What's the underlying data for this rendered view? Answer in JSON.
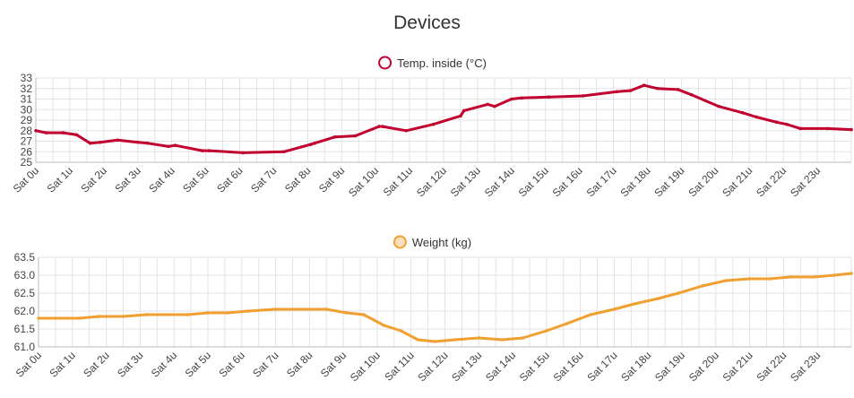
{
  "page": {
    "title": "Devices"
  },
  "chart_data": [
    {
      "type": "line",
      "legend": {
        "label": "Temp. inside (°C)",
        "placement": "top-center"
      },
      "color": "#c2002f",
      "fill": "#ffffff",
      "grid": true,
      "ylim": [
        25,
        33
      ],
      "yticks": [
        25,
        26,
        27,
        28,
        29,
        30,
        31,
        32,
        33
      ],
      "xlim": [
        0,
        24
      ],
      "categories": [
        "Sat 0u",
        "Sat 1u",
        "Sat 2u",
        "Sat 3u",
        "Sat 4u",
        "Sat 5u",
        "Sat 6u",
        "Sat 7u",
        "Sat 8u",
        "Sat 9u",
        "Sat 10u",
        "Sat 11u",
        "Sat 12u",
        "Sat 13u",
        "Sat 14u",
        "Sat 15u",
        "Sat 16u",
        "Sat 17u",
        "Sat 18u",
        "Sat 19u",
        "Sat 20u",
        "Sat 21u",
        "Sat 22u",
        "Sat 23u"
      ],
      "x": [
        0,
        0.3,
        0.8,
        1.2,
        1.6,
        1.9,
        2.4,
        3.0,
        3.3,
        3.9,
        4.1,
        4.9,
        5.1,
        6.1,
        7.3,
        8.1,
        8.2,
        8.8,
        9.4,
        10.1,
        10.2,
        10.9,
        11.7,
        12.5,
        12.6,
        13.3,
        13.5,
        14.0,
        14.3,
        15.1,
        16.1,
        17.1,
        17.5,
        17.9,
        18.3,
        18.9,
        19.3,
        20.1,
        20.8,
        21.2,
        21.8,
        22.1,
        22.5,
        23.3,
        24.0
      ],
      "y": [
        28.0,
        27.8,
        27.8,
        27.6,
        26.8,
        26.9,
        27.1,
        26.9,
        26.8,
        26.5,
        26.6,
        26.1,
        26.1,
        25.9,
        26.0,
        26.7,
        26.8,
        27.4,
        27.5,
        28.4,
        28.4,
        28.0,
        28.6,
        29.4,
        29.9,
        30.5,
        30.3,
        31.0,
        31.1,
        31.2,
        31.3,
        31.7,
        31.8,
        32.3,
        32.0,
        31.9,
        31.4,
        30.3,
        29.7,
        29.3,
        28.8,
        28.6,
        28.2,
        28.2,
        28.1
      ]
    },
    {
      "type": "line",
      "legend": {
        "label": "Weight (kg)",
        "placement": "top-center"
      },
      "color": "#f0a030",
      "fill": "#fbe0c0",
      "grid": true,
      "ylim": [
        61.0,
        63.5
      ],
      "yticks": [
        61.0,
        61.5,
        62.0,
        62.5,
        63.0,
        63.5
      ],
      "xlim": [
        0,
        24
      ],
      "categories": [
        "Sat 0u",
        "Sat 1u",
        "Sat 2u",
        "Sat 3u",
        "Sat 4u",
        "Sat 5u",
        "Sat 6u",
        "Sat 7u",
        "Sat 8u",
        "Sat 9u",
        "Sat 10u",
        "Sat 11u",
        "Sat 12u",
        "Sat 13u",
        "Sat 14u",
        "Sat 15u",
        "Sat 16u",
        "Sat 17u",
        "Sat 18u",
        "Sat 19u",
        "Sat 20u",
        "Sat 21u",
        "Sat 22u",
        "Sat 23u"
      ],
      "x": [
        0,
        0.5,
        1.2,
        1.8,
        2.5,
        3.2,
        3.8,
        4.4,
        5.0,
        5.6,
        6.2,
        7.0,
        7.8,
        8.5,
        9.1,
        9.6,
        10.2,
        10.7,
        11.2,
        11.7,
        12.3,
        13.0,
        13.7,
        14.3,
        15.0,
        15.6,
        16.3,
        17.0,
        17.6,
        18.3,
        18.9,
        19.6,
        20.3,
        21.0,
        21.6,
        22.2,
        22.9,
        23.5,
        24.0
      ],
      "y": [
        61.8,
        61.8,
        61.8,
        61.85,
        61.85,
        61.9,
        61.9,
        61.9,
        61.95,
        61.95,
        62.0,
        62.05,
        62.05,
        62.05,
        61.95,
        61.9,
        61.6,
        61.45,
        61.2,
        61.15,
        61.2,
        61.25,
        61.2,
        61.25,
        61.45,
        61.65,
        61.9,
        62.05,
        62.2,
        62.35,
        62.5,
        62.7,
        62.85,
        62.9,
        62.9,
        62.95,
        62.95,
        63.0,
        63.05
      ]
    }
  ]
}
